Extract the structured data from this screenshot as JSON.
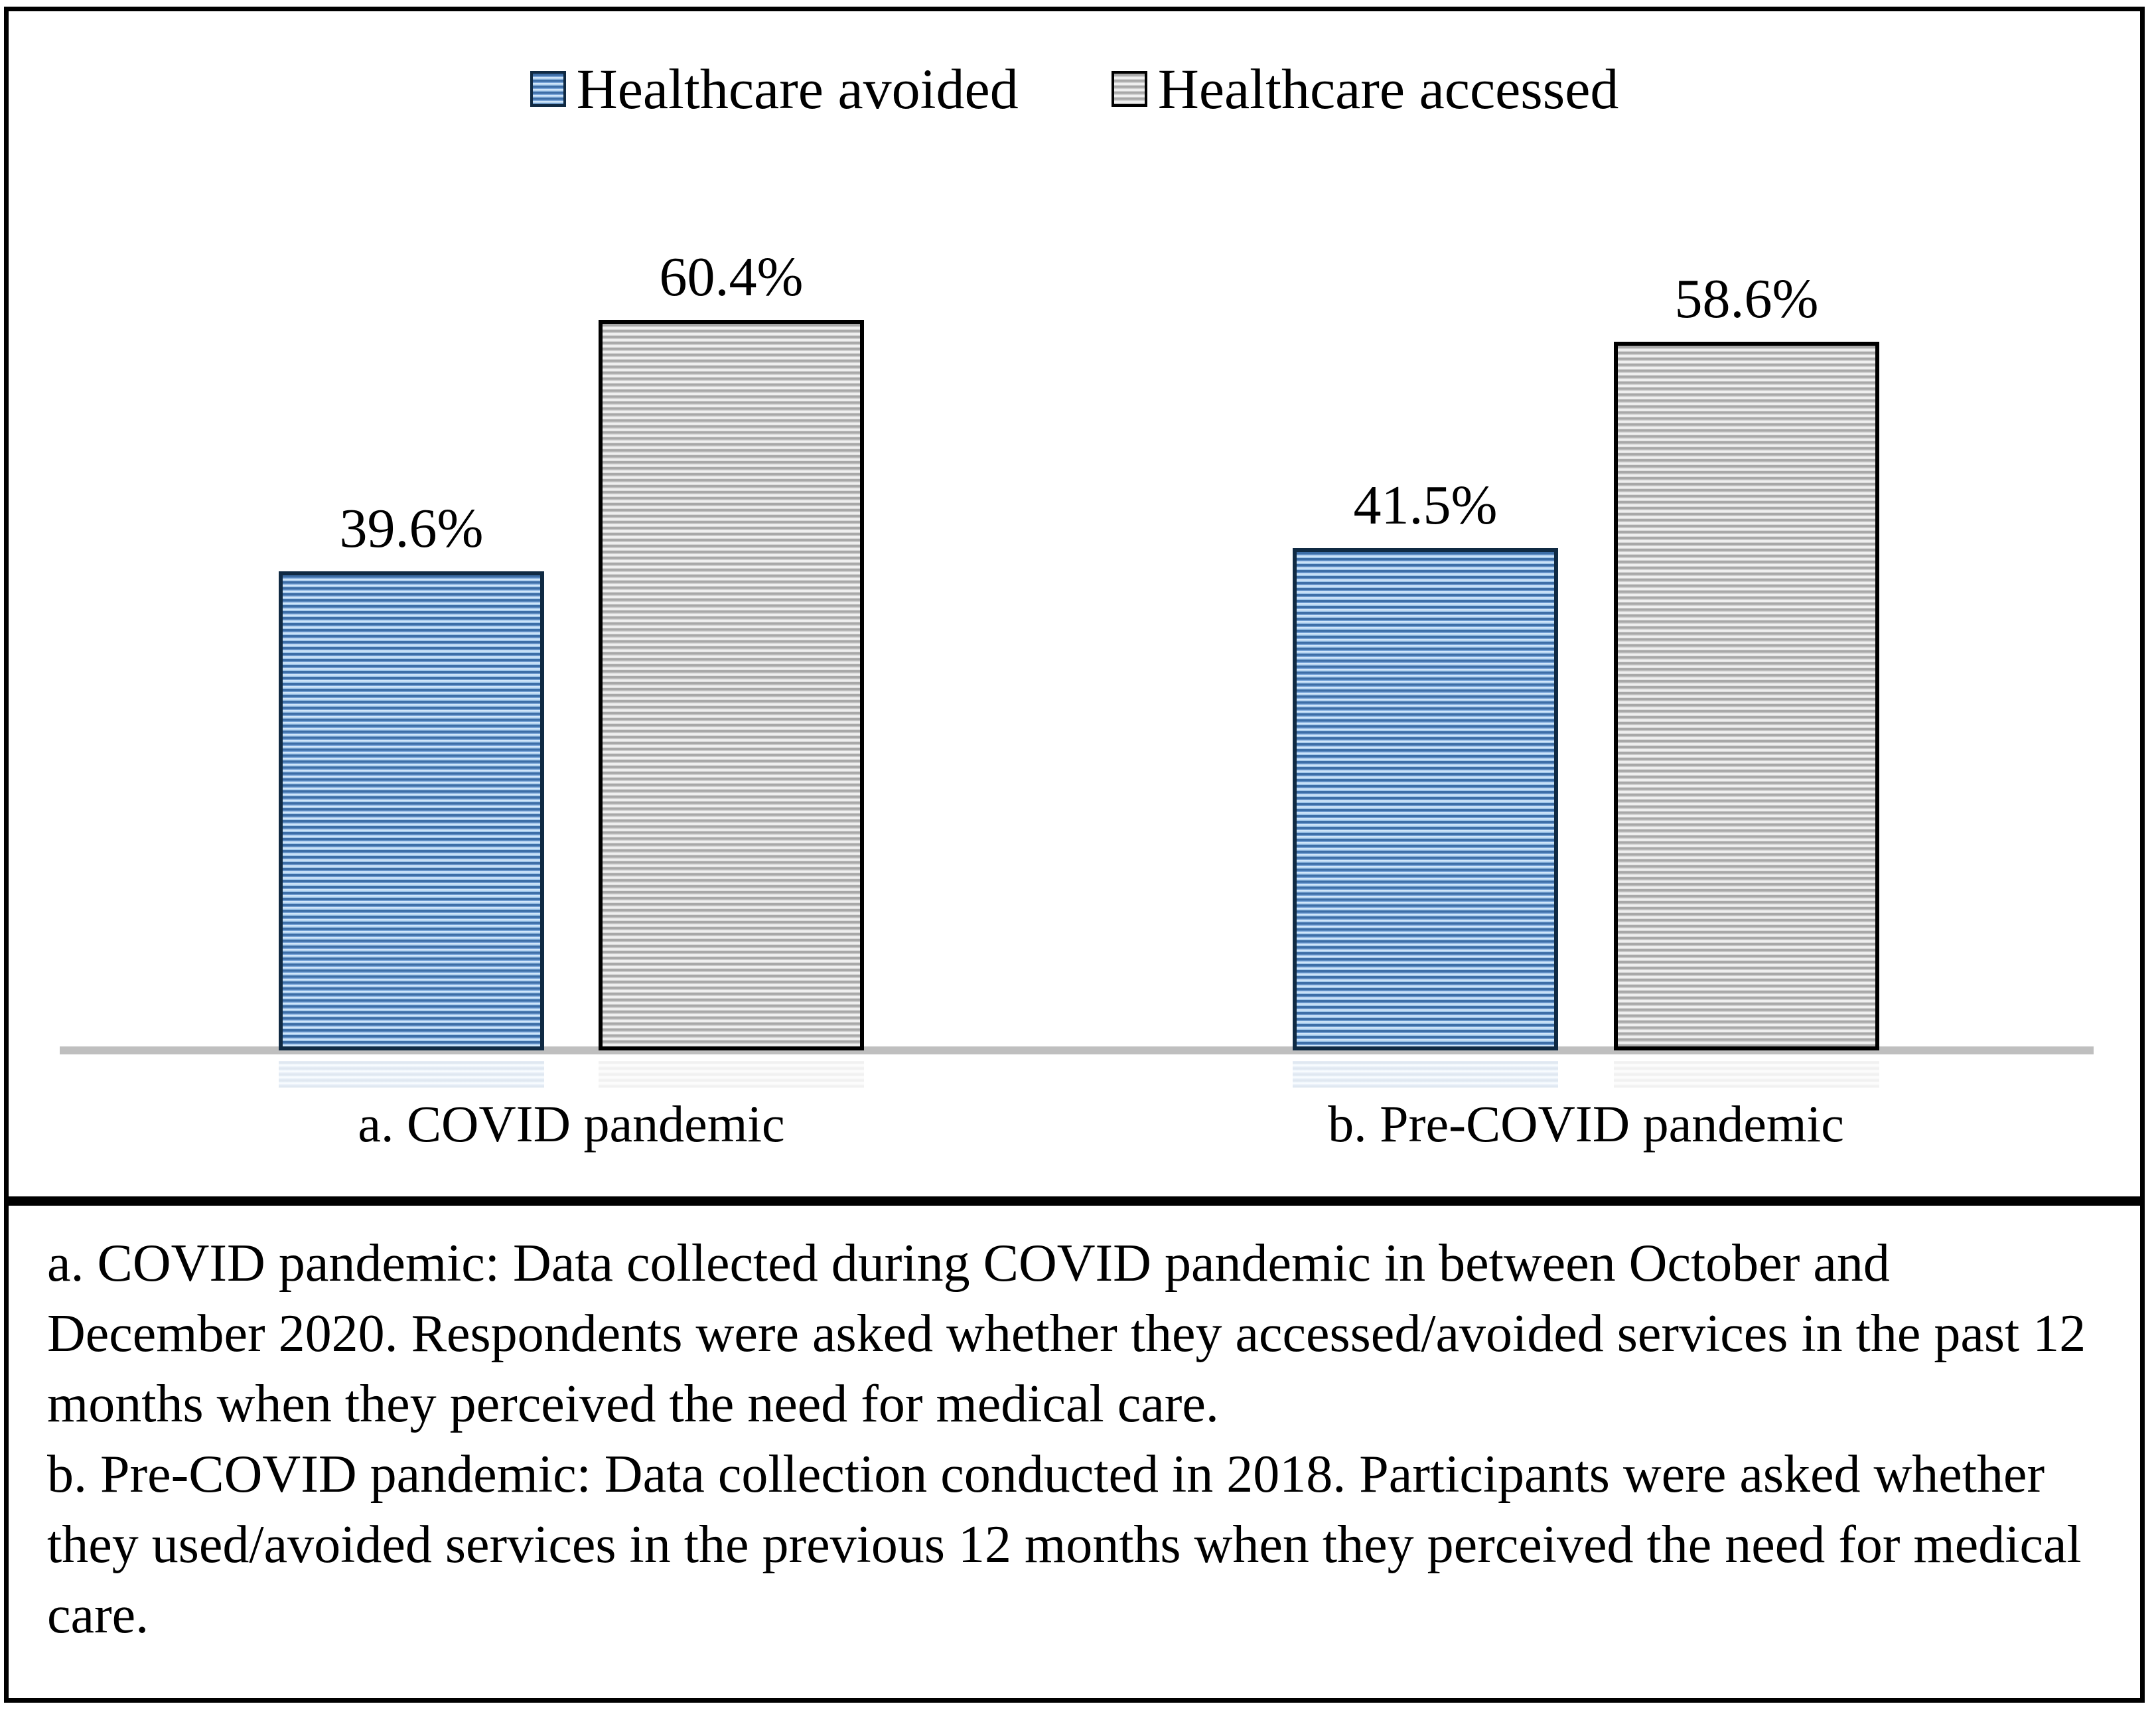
{
  "figure": {
    "background": "#ffffff",
    "frame_color": "#000000"
  },
  "legend": {
    "items": [
      {
        "label": "Healthcare avoided",
        "swatch": "blue-horizontal-stripes"
      },
      {
        "label": "Healthcare accessed",
        "swatch": "gray-horizontal-stripes"
      }
    ]
  },
  "chart_data": {
    "type": "bar",
    "categories": [
      "a. COVID pandemic",
      "b. Pre-COVID pandemic"
    ],
    "series": [
      {
        "name": "Healthcare avoided",
        "values": [
          39.6,
          41.5
        ],
        "fill_style": "horizontal stripes",
        "stripe_colors": [
          "#3d6ea7",
          "#cfe5f9"
        ],
        "border_color": "#102a43"
      },
      {
        "name": "Healthcare accessed",
        "values": [
          60.4,
          58.6
        ],
        "fill_style": "horizontal stripes",
        "stripe_colors": [
          "#a8a8a8",
          "#efefef"
        ],
        "border_color": "#000000"
      }
    ],
    "value_labels": [
      "39.6%",
      "60.4%",
      "41.5%",
      "58.6%"
    ],
    "title": "",
    "xlabel": "",
    "ylabel": "",
    "ylim": [
      0,
      66
    ],
    "grid": false,
    "y_axis_visible": false,
    "legend_position": "top-center",
    "axis_line_color": "#bfbfbf",
    "value_format": "percent"
  },
  "caption": {
    "a": "a. COVID pandemic: Data collected during COVID pandemic in between October and December 2020. Respondents were asked whether they accessed/avoided services in the past 12 months when they perceived the need for medical care.",
    "b": "b. Pre-COVID pandemic: Data collection conducted in 2018. Participants were asked whether they used/avoided services in the previous 12 months when they perceived the need for medical care."
  }
}
